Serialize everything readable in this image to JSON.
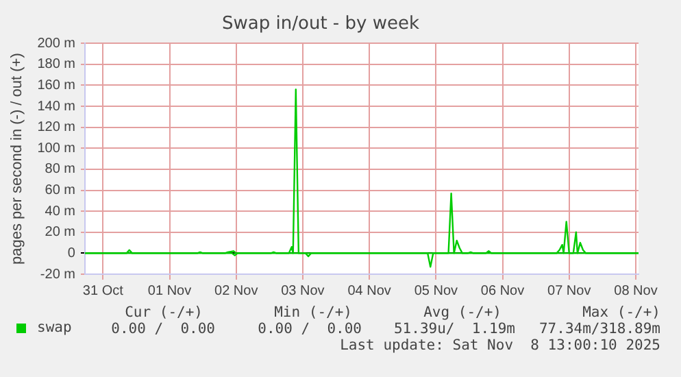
{
  "chart_data": {
    "type": "line",
    "title": "Swap in/out - by week",
    "ylabel": "pages per second in (-) / out (+)",
    "xlim": [
      "2025-10-30T17:30",
      "2025-11-08T01:00"
    ],
    "xticks": [
      {
        "value": "2025-10-31",
        "label": "31 Oct"
      },
      {
        "value": "2025-11-01",
        "label": "01 Nov"
      },
      {
        "value": "2025-11-02",
        "label": "02 Nov"
      },
      {
        "value": "2025-11-03",
        "label": "03 Nov"
      },
      {
        "value": "2025-11-04",
        "label": "04 Nov"
      },
      {
        "value": "2025-11-05",
        "label": "05 Nov"
      },
      {
        "value": "2025-11-06",
        "label": "06 Nov"
      },
      {
        "value": "2025-11-07",
        "label": "07 Nov"
      },
      {
        "value": "2025-11-08",
        "label": "08 Nov"
      }
    ],
    "ylim": [
      -20,
      200
    ],
    "yticks": [
      {
        "value": -20,
        "label": "-20 m"
      },
      {
        "value": 0,
        "label": "0"
      },
      {
        "value": 20,
        "label": "20 m"
      },
      {
        "value": 40,
        "label": "40 m"
      },
      {
        "value": 60,
        "label": "60 m"
      },
      {
        "value": 80,
        "label": "80 m"
      },
      {
        "value": 100,
        "label": "100 m"
      },
      {
        "value": 120,
        "label": "120 m"
      },
      {
        "value": 140,
        "label": "140 m"
      },
      {
        "value": 160,
        "label": "160 m"
      },
      {
        "value": 180,
        "label": "180 m"
      },
      {
        "value": 200,
        "label": "200 m"
      }
    ],
    "grid": true,
    "legend": "bottom left",
    "marker": "none",
    "line_style": "solid",
    "series": [
      {
        "color": "#00cc00",
        "x": [
          "2025-10-30T17:30",
          "2025-11-01T22:30",
          "2025-11-01T23:30",
          "2025-11-02T00:30",
          "2025-11-03T01:00",
          "2025-11-03T02:00",
          "2025-11-03T03:00",
          "2025-11-04T21:00",
          "2025-11-04T22:00",
          "2025-11-04T23:00",
          "2025-11-08T01:00"
        ],
        "values": [
          0,
          0,
          -2,
          0,
          0,
          -3,
          0,
          0,
          -13,
          0,
          0
        ]
      },
      {
        "name": "swap",
        "color": "#00cc00",
        "x": [
          "2025-10-30T17:30",
          "2025-10-31T08:30",
          "2025-10-31T09:30",
          "2025-10-31T10:30",
          "2025-11-01T10:00",
          "2025-11-01T11:00",
          "2025-11-01T12:00",
          "2025-11-01T20:00",
          "2025-11-01T21:00",
          "2025-11-01T23:00",
          "2025-11-02T00:00",
          "2025-11-02T12:30",
          "2025-11-02T13:30",
          "2025-11-02T14:30",
          "2025-11-02T19:00",
          "2025-11-02T20:00",
          "2025-11-02T20:30",
          "2025-11-02T21:30",
          "2025-11-02T22:30",
          "2025-11-05T04:30",
          "2025-11-05T05:30",
          "2025-11-05T06:30",
          "2025-11-05T07:30",
          "2025-11-05T08:30",
          "2025-11-05T09:30",
          "2025-11-05T11:30",
          "2025-11-05T12:30",
          "2025-11-05T13:30",
          "2025-11-05T18:00",
          "2025-11-05T19:00",
          "2025-11-05T20:00",
          "2025-11-06T19:30",
          "2025-11-06T20:30",
          "2025-11-06T21:30",
          "2025-11-06T22:00",
          "2025-11-06T23:00",
          "2025-11-07T00:00",
          "2025-11-07T01:30",
          "2025-11-07T02:30",
          "2025-11-07T03:00",
          "2025-11-07T04:00",
          "2025-11-07T05:00",
          "2025-11-07T06:00",
          "2025-11-08T01:00"
        ],
        "values": [
          0,
          0,
          3,
          0,
          0,
          1,
          0,
          0,
          1,
          2,
          0,
          0,
          1,
          0,
          0,
          6,
          0,
          156,
          0,
          0,
          57,
          0,
          12,
          5,
          0,
          0,
          1,
          0,
          0,
          2,
          0,
          0,
          3,
          8,
          0,
          30,
          0,
          0,
          20,
          0,
          10,
          3,
          0,
          0
        ]
      }
    ],
    "annotations": [
      "Cur (-/+)",
      "Min (-/+)",
      "Avg (-/+)",
      "Max (-/+)",
      "0.00 /  0.00",
      "0.00 /  0.00",
      "51.39u/  1.19m",
      "77.34m/318.89m",
      "Last update: Sat Nov  8 13:00:10 2025"
    ]
  }
}
